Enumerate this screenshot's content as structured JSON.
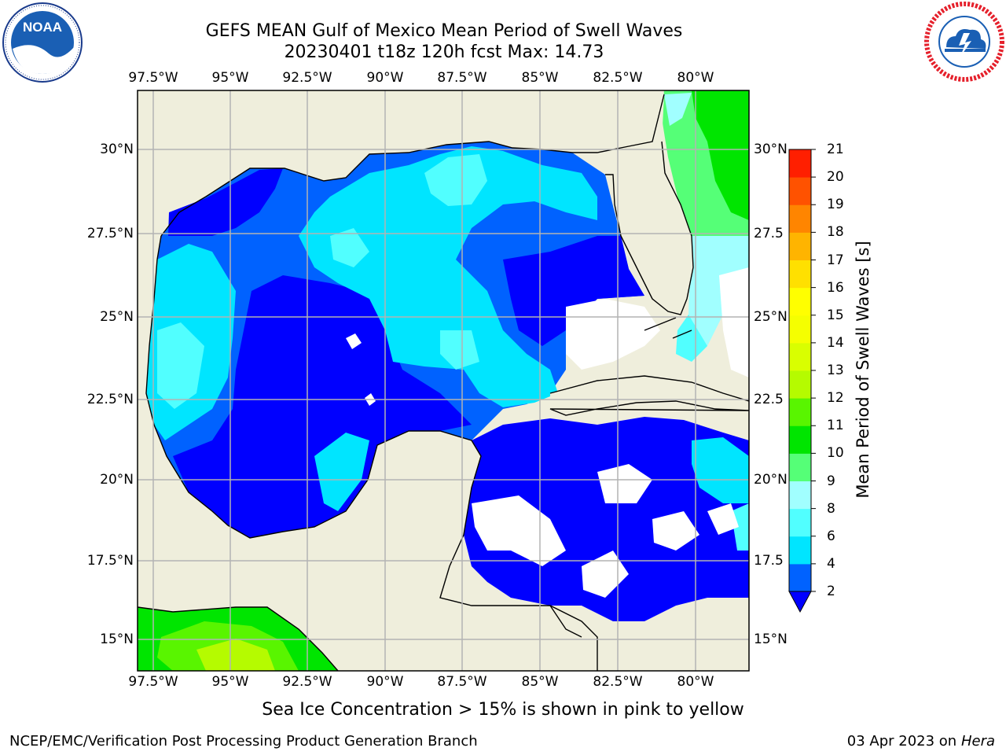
{
  "header": {
    "title_line1": "GEFS MEAN Gulf of Mexico Mean Period of Swell Waves",
    "title_line2": "20230401 t18z 120h fcst   Max: 14.73"
  },
  "logos": {
    "left": "noaa-logo",
    "right": "national-weather-service-logo"
  },
  "map": {
    "lon_labels": [
      "97.5°W",
      "95°W",
      "92.5°W",
      "90°W",
      "87.5°W",
      "85°W",
      "82.5°W",
      "80°W"
    ],
    "lat_labels_left": [
      "30°N",
      "27.5°N",
      "25°N",
      "22.5°N",
      "20°N",
      "17.5°N",
      "15°N"
    ],
    "lat_labels_right": [
      "30°N",
      "27.5",
      "25°N",
      "22.5",
      "20°N",
      "17.5",
      "15°N"
    ],
    "colors": {
      "land": "#efeedc",
      "gridline": "#b3b3b3",
      "coast": "#000000"
    }
  },
  "colorbar": {
    "title": "Mean Period of Swell Waves [s]",
    "levels": [
      2,
      4,
      6,
      8,
      9,
      10,
      11,
      12,
      13,
      14,
      15,
      16,
      17,
      18,
      19,
      20,
      21
    ],
    "tick_labels": [
      "2",
      "4",
      "6",
      "8",
      "9",
      "10",
      "11",
      "12",
      "13",
      "14",
      "15",
      "16",
      "17",
      "18",
      "19",
      "20",
      "21"
    ],
    "colors": [
      "#0062ff",
      "#00e5ff",
      "#51ffff",
      "#a1ffff",
      "#55ff77",
      "#00e500",
      "#59f500",
      "#b5fb00",
      "#d9ff00",
      "#f5ff00",
      "#ffff00",
      "#ffe000",
      "#ffb400",
      "#ff8500",
      "#ff5200",
      "#ff1f00"
    ],
    "under_color": "#0000ff"
  },
  "footer": {
    "ice_note": "Sea Ice Concentration > 15% is shown in pink to yellow",
    "credit": "NCEP/EMC/Verification Post Processing Product Generation Branch",
    "date": "03 Apr 2023 on ",
    "machine": "Hera"
  }
}
